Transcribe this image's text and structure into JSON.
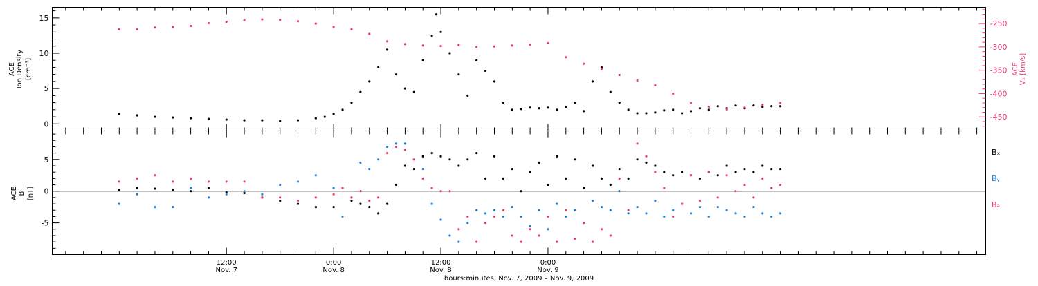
{
  "chart_data": [
    {
      "type": "scatter",
      "panel": "top",
      "ylabel_line1": "ACE",
      "ylabel_line2": "Ion Density",
      "ylabel_unit": "[cm⁻³]",
      "ylim": [
        -1,
        16.5
      ],
      "yticks_major": [
        0,
        5,
        10,
        15
      ],
      "y2label_line1": "ACE",
      "y2label_line2": "Vₓ [km/s]",
      "y2lim": [
        -480,
        -215
      ],
      "y2ticks_major": [
        -450,
        -400,
        -350,
        -300,
        -250
      ],
      "series": [
        {
          "axis": "left",
          "color": "#000000",
          "x": [
            0,
            2,
            4,
            6,
            8,
            10,
            12,
            14,
            16,
            18,
            20,
            22,
            23,
            24,
            25,
            26,
            27,
            28,
            29,
            30,
            31,
            32,
            33,
            34,
            35,
            35.5,
            36,
            37,
            38,
            39,
            40,
            41,
            42,
            43,
            44,
            45,
            46,
            47,
            48,
            49,
            50,
            51,
            52,
            53,
            54,
            55,
            56,
            57,
            58,
            59,
            60,
            61,
            62,
            63,
            64,
            65,
            66,
            67,
            68,
            69,
            70,
            71,
            72,
            73,
            74
          ],
          "y": [
            1.4,
            1.2,
            1.0,
            0.9,
            0.8,
            0.7,
            0.6,
            0.5,
            0.5,
            0.4,
            0.5,
            0.8,
            1.0,
            1.4,
            2.0,
            3.0,
            4.5,
            6.0,
            8.0,
            10.5,
            7.0,
            5.0,
            4.5,
            9.0,
            12.5,
            15.5,
            13.0,
            10.0,
            7.0,
            4.0,
            9.0,
            7.5,
            6.0,
            3.0,
            2.0,
            2.1,
            2.3,
            2.2,
            2.3,
            2.0,
            2.4,
            3.0,
            1.8,
            6.0,
            8.0,
            4.5,
            3.0,
            2.0,
            1.5,
            1.5,
            1.6,
            1.9,
            2.0,
            1.5,
            1.8,
            2.2,
            2.0,
            2.5,
            2.2,
            2.6,
            2.2,
            2.6,
            2.4,
            2.5,
            2.5
          ]
        },
        {
          "axis": "right",
          "color": "#e63c6e",
          "x": [
            0,
            2,
            4,
            6,
            8,
            10,
            12,
            14,
            16,
            18,
            20,
            22,
            24,
            26,
            28,
            30,
            32,
            34,
            36,
            38,
            40,
            42,
            44,
            46,
            48,
            50,
            52,
            54,
            56,
            58,
            60,
            62,
            64,
            66,
            68,
            70,
            72,
            74
          ],
          "y": [
            -262,
            -262,
            -258,
            -257,
            -255,
            -249,
            -246,
            -243,
            -241,
            -242,
            -245,
            -250,
            -257,
            -262,
            -272,
            -288,
            -294,
            -297,
            -298,
            -296,
            -300,
            -299,
            -297,
            -295,
            -292,
            -322,
            -336,
            -347,
            -360,
            -372,
            -382,
            -400,
            -420,
            -428,
            -434,
            -430,
            -424,
            -420
          ]
        }
      ]
    },
    {
      "type": "scatter",
      "panel": "bottom",
      "ylabel_line1": "ACE",
      "ylabel_line2": "B",
      "ylabel_unit": "[nT]",
      "ylim": [
        -10,
        9.5
      ],
      "yticks_major": [
        -5,
        0,
        5
      ],
      "legend_position": "right",
      "series": [
        {
          "name": "Bₓ",
          "color": "#000000",
          "x": [
            0,
            2,
            4,
            6,
            8,
            10,
            12,
            14,
            16,
            18,
            20,
            22,
            24,
            25,
            26,
            27,
            28,
            29,
            30,
            31,
            32,
            33,
            34,
            35,
            36,
            37,
            38,
            39,
            40,
            41,
            42,
            43,
            44,
            45,
            46,
            47,
            48,
            49,
            50,
            51,
            52,
            53,
            54,
            55,
            56,
            57,
            58,
            59,
            60,
            61,
            62,
            63,
            64,
            65,
            66,
            67,
            68,
            69,
            70,
            71,
            72,
            73,
            74
          ],
          "y": [
            0.2,
            0.5,
            0.4,
            0.2,
            0.0,
            0.5,
            -0.2,
            -0.3,
            -1.0,
            -1.5,
            -2.0,
            -2.5,
            -2.5,
            0.5,
            -1.5,
            -2.0,
            -2.5,
            -3.5,
            -2.0,
            1.0,
            4.0,
            3.5,
            5.5,
            6.0,
            5.5,
            5.0,
            4.0,
            5.0,
            6.0,
            2.0,
            5.5,
            2.0,
            3.5,
            0.0,
            3.0,
            4.5,
            1.0,
            5.5,
            2.0,
            5.0,
            0.5,
            4.0,
            2.0,
            1.0,
            3.5,
            2.0,
            5.0,
            4.5,
            4.0,
            3.0,
            2.5,
            3.0,
            2.5,
            2.0,
            3.0,
            2.5,
            4.0,
            3.0,
            3.5,
            3.0,
            4.0,
            3.5,
            3.5
          ]
        },
        {
          "name": "Bᵧ",
          "color": "#1e7fd8",
          "x": [
            0,
            2,
            4,
            6,
            8,
            10,
            12,
            14,
            16,
            18,
            20,
            22,
            24,
            25,
            26,
            27,
            28,
            29,
            30,
            31,
            32,
            33,
            34,
            35,
            36,
            37,
            38,
            39,
            40,
            41,
            42,
            43,
            44,
            45,
            46,
            47,
            48,
            49,
            50,
            51,
            52,
            53,
            54,
            55,
            56,
            57,
            58,
            59,
            60,
            61,
            62,
            63,
            64,
            65,
            66,
            67,
            68,
            69,
            70,
            71,
            72,
            73,
            74
          ],
          "y": [
            -2.0,
            -0.5,
            -2.5,
            -2.5,
            0.5,
            -1.0,
            -0.5,
            0.0,
            -0.5,
            1.0,
            1.5,
            2.5,
            0.5,
            -4.0,
            -1.0,
            4.5,
            3.5,
            5.0,
            7.0,
            7.5,
            7.5,
            5.0,
            3.5,
            -2.0,
            -4.5,
            -7.0,
            -8.0,
            -5.0,
            -3.0,
            -3.5,
            -3.0,
            -4.0,
            -2.5,
            -4.0,
            -5.5,
            -3.0,
            -6.0,
            -2.0,
            -4.0,
            -3.0,
            -5.0,
            -1.5,
            -2.5,
            -3.0,
            0.0,
            -3.5,
            -2.5,
            -3.5,
            -1.5,
            -4.0,
            -3.0,
            -2.0,
            -3.5,
            -2.5,
            -4.0,
            -2.5,
            -3.0,
            -3.5,
            -4.0,
            -2.5,
            -3.5,
            -4.0,
            -3.5
          ]
        },
        {
          "name": "Bₔ",
          "color": "#e63c6e",
          "x": [
            0,
            2,
            4,
            6,
            8,
            10,
            12,
            14,
            16,
            18,
            20,
            22,
            24,
            25,
            26,
            27,
            28,
            29,
            30,
            31,
            32,
            33,
            34,
            35,
            36,
            37,
            38,
            39,
            40,
            41,
            42,
            43,
            44,
            45,
            46,
            47,
            48,
            49,
            50,
            51,
            52,
            53,
            54,
            55,
            56,
            57,
            58,
            59,
            60,
            61,
            62,
            63,
            64,
            65,
            66,
            67,
            68,
            69,
            70,
            71,
            72,
            73,
            74
          ],
          "y": [
            1.5,
            2.0,
            2.5,
            1.5,
            2.0,
            1.5,
            1.5,
            1.5,
            -1.0,
            -1.0,
            -1.5,
            -1.0,
            -0.5,
            0.5,
            -1.0,
            0.0,
            -1.5,
            -1.0,
            6.0,
            7.0,
            6.5,
            5.0,
            2.0,
            0.5,
            0.0,
            0.0,
            -6.0,
            -4.0,
            -8.0,
            -5.0,
            -4.0,
            -3.0,
            -7.0,
            -8.0,
            -6.0,
            -7.0,
            -4.0,
            -8.0,
            -3.0,
            -7.5,
            -5.0,
            -8.0,
            -6.0,
            -7.0,
            2.0,
            -3.0,
            7.5,
            5.5,
            3.0,
            0.5,
            -4.0,
            -2.0,
            2.5,
            -1.5,
            3.0,
            -1.0,
            2.5,
            0.0,
            1.0,
            -1.0,
            2.0,
            0.5,
            1.0
          ]
        }
      ]
    }
  ],
  "x_axis": {
    "xlim": [
      -7.5,
      97
    ],
    "ticks": [
      {
        "x": 12,
        "line1": "12:00",
        "line2": "Nov. 7"
      },
      {
        "x": 24,
        "line1": "0:00",
        "line2": "Nov. 8"
      },
      {
        "x": 36,
        "line1": "12:00",
        "line2": "Nov. 8"
      },
      {
        "x": 48,
        "line1": "0:00",
        "line2": "Nov. 9"
      }
    ],
    "xlabel": "hours:minutes, Nov. 7, 2009 – Nov. 9, 2009"
  }
}
